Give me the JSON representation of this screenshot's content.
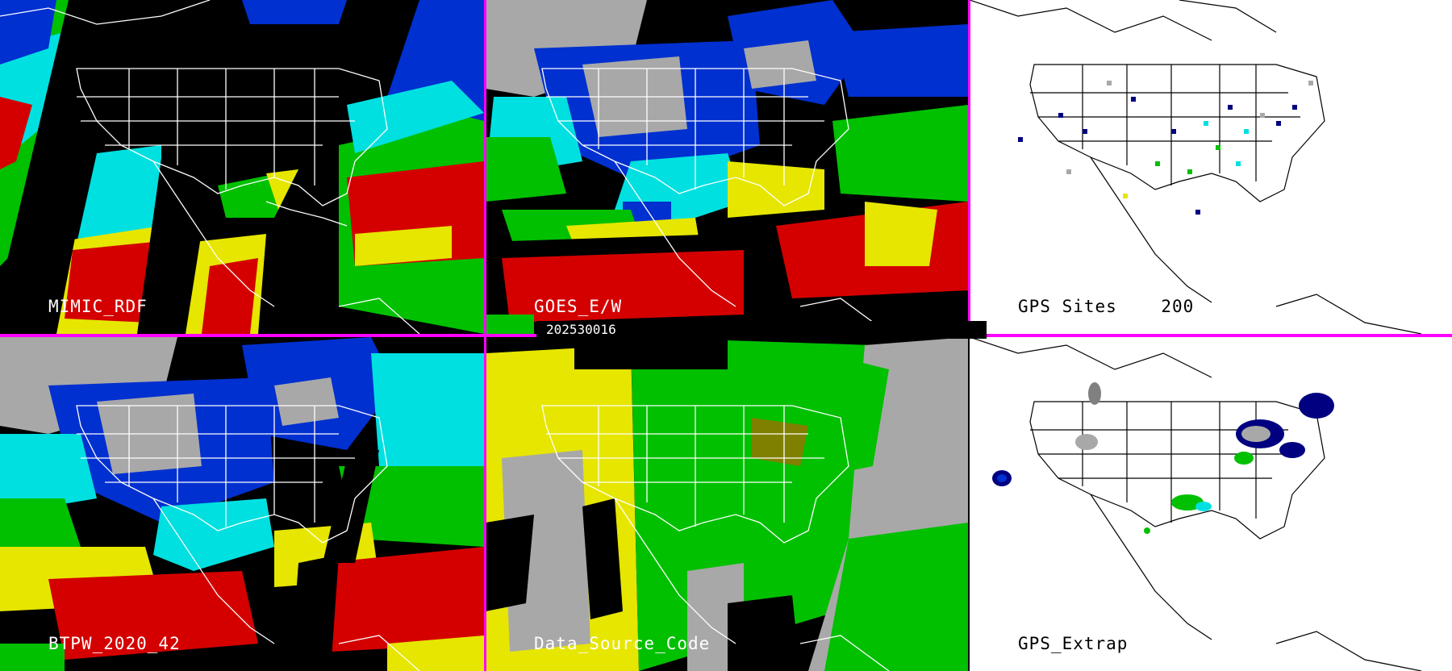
{
  "timestamp": "202530016",
  "panels": [
    {
      "label": "MIMIC_RDF"
    },
    {
      "label": "GOES_E/W"
    },
    {
      "label": "GPS Sites    200"
    },
    {
      "label": "BTPW_2020_42"
    },
    {
      "label": "Data_Source_Code"
    },
    {
      "label": "GPS_Extrap"
    }
  ],
  "colors": {
    "divider": "#ff00ff",
    "red": "#d40000",
    "yellow": "#e6e600",
    "green": "#00c000",
    "cyan": "#00e0e0",
    "blue": "#0030d0",
    "navy": "#000080",
    "gray": "#a8a8a8",
    "white": "#ffffff",
    "black": "#000000"
  }
}
